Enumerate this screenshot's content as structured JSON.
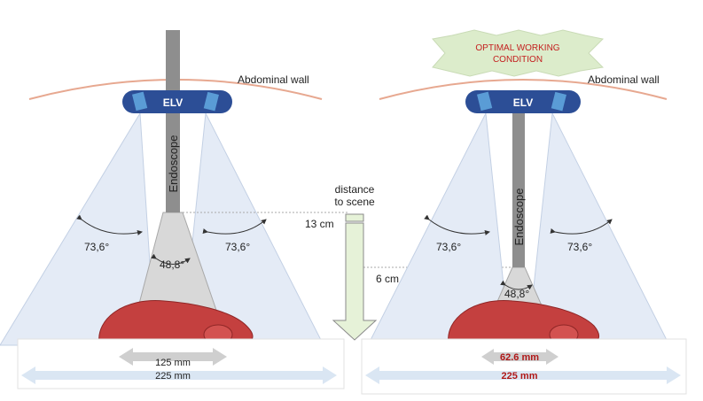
{
  "labels": {
    "abdominal_wall": "Abdominal wall",
    "elv": "ELV",
    "endoscope": "Endoscope",
    "distance_line1": "distance",
    "distance_line2": "to scene",
    "optimal_line1": "OPTIMAL WORKING",
    "optimal_line2": "CONDITION"
  },
  "left": {
    "camera_angle": "73,6°",
    "endoscope_angle": "48,8°",
    "distance": "13 cm",
    "endoscope_width": "125 mm",
    "camera_width": "225 mm"
  },
  "right": {
    "camera_angle": "73,6°",
    "endoscope_angle": "48,8°",
    "distance": "6 cm",
    "endoscope_width": "62.6 mm",
    "camera_width": "225 mm"
  },
  "colors": {
    "elv_body": "#2c4e96",
    "camera": "#5a9cd6",
    "fov_fill": "#e4ebf6",
    "endoscope": "#8e8e8e",
    "endo_fov": "#d8d8d8",
    "wall": "#e7a890",
    "organ": "#c4403f",
    "banner": "#dceccb",
    "distance_arrow": "#e6f2d8",
    "highlight": "#b01818"
  }
}
